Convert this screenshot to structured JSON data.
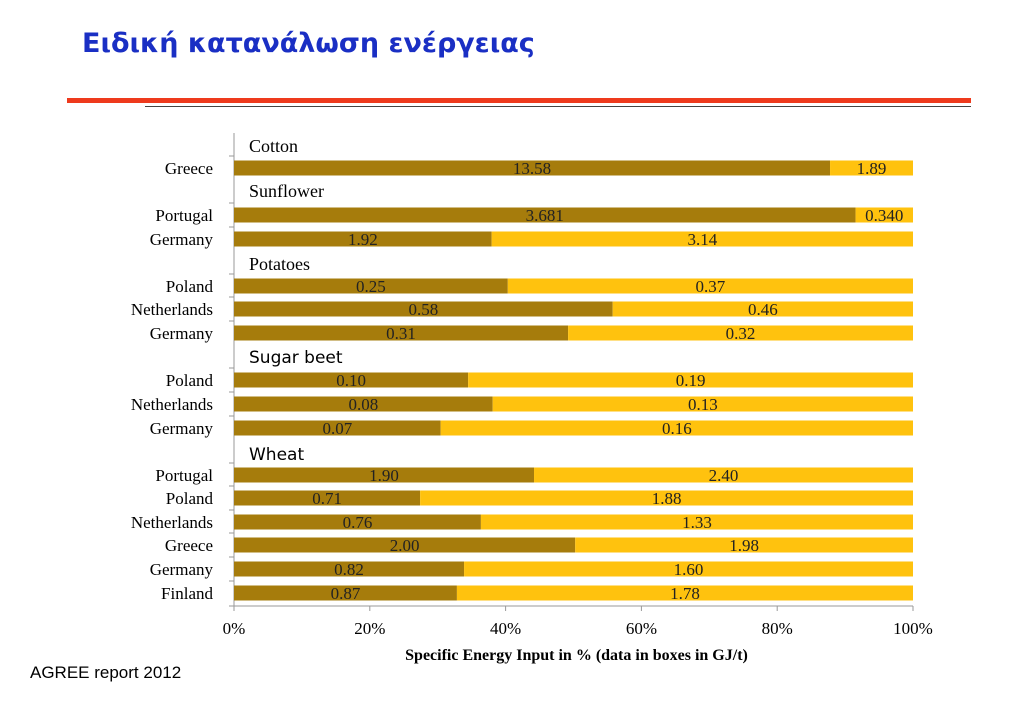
{
  "slide": {
    "title": "Ειδική κατανάλωση ενέργειας",
    "source": "AGREE report 2012"
  },
  "colors": {
    "title": "#1a2fc4",
    "accent_line": "#ee3a1d",
    "series_dark": "#a67c0c",
    "series_light": "#ffc20e"
  },
  "chart_data": {
    "type": "bar",
    "orientation": "horizontal",
    "stacked": "percent",
    "xlabel": "Specific Energy Input in % (data in boxes in GJ/t)",
    "xlim": [
      0,
      100
    ],
    "x_ticks": [
      "0%",
      "20%",
      "40%",
      "60%",
      "80%",
      "100%"
    ],
    "groups": [
      {
        "name": "Cotton",
        "rows": [
          {
            "label": "Greece",
            "values": [
              13.58,
              1.89
            ],
            "labels": [
              "13.58",
              "1.89"
            ]
          }
        ]
      },
      {
        "name": "Sunflower",
        "rows": [
          {
            "label": "Portugal",
            "values": [
              3.681,
              0.34
            ],
            "labels": [
              "3.681",
              "0.340"
            ]
          },
          {
            "label": "Germany",
            "values": [
              1.92,
              3.14
            ],
            "labels": [
              "1.92",
              "3.14"
            ]
          }
        ]
      },
      {
        "name": "Potatoes",
        "rows": [
          {
            "label": "Poland",
            "values": [
              0.25,
              0.37
            ],
            "labels": [
              "0.25",
              "0.37"
            ]
          },
          {
            "label": "Netherlands",
            "values": [
              0.58,
              0.46
            ],
            "labels": [
              "0.58",
              "0.46"
            ]
          },
          {
            "label": "Germany",
            "values": [
              0.31,
              0.32
            ],
            "labels": [
              "0.31",
              "0.32"
            ]
          }
        ]
      },
      {
        "name": "Sugar beet",
        "rows": [
          {
            "label": "Poland",
            "values": [
              0.1,
              0.19
            ],
            "labels": [
              "0.10",
              "0.19"
            ]
          },
          {
            "label": "Netherlands",
            "values": [
              0.08,
              0.13
            ],
            "labels": [
              "0.08",
              "0.13"
            ]
          },
          {
            "label": "Germany",
            "values": [
              0.07,
              0.16
            ],
            "labels": [
              "0.07",
              "0.16"
            ]
          }
        ]
      },
      {
        "name": "Wheat",
        "rows": [
          {
            "label": "Portugal",
            "values": [
              1.9,
              2.4
            ],
            "labels": [
              "1.90",
              "2.40"
            ]
          },
          {
            "label": "Poland",
            "values": [
              0.71,
              1.88
            ],
            "labels": [
              "0.71",
              "1.88"
            ]
          },
          {
            "label": "Netherlands",
            "values": [
              0.76,
              1.33
            ],
            "labels": [
              "0.76",
              "1.33"
            ]
          },
          {
            "label": "Greece",
            "values": [
              2.0,
              1.98
            ],
            "labels": [
              "2.00",
              "1.98"
            ]
          },
          {
            "label": "Germany",
            "values": [
              0.82,
              1.6
            ],
            "labels": [
              "0.82",
              "1.60"
            ]
          },
          {
            "label": "Finland",
            "values": [
              0.87,
              1.78
            ],
            "labels": [
              "0.87",
              "1.78"
            ]
          }
        ]
      }
    ]
  }
}
